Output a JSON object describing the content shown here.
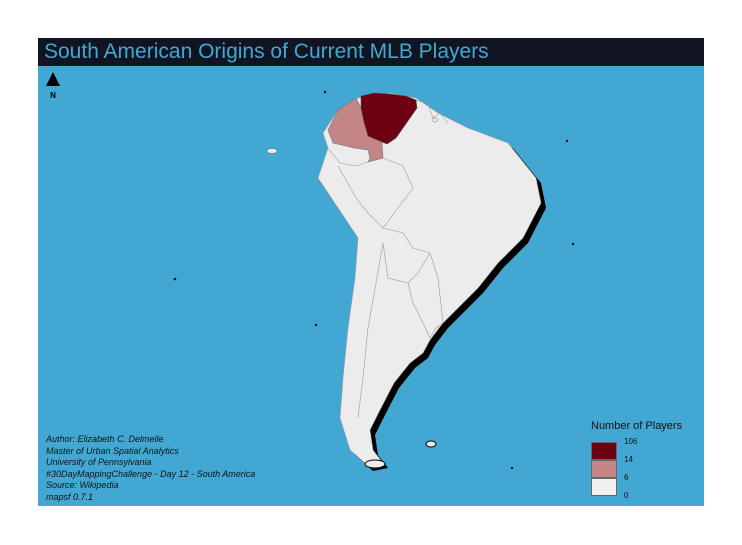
{
  "title": "South American Origins of Current MLB Players",
  "north_arrow": {
    "label": "N"
  },
  "credits": [
    "Author: Elizabeth C. Delmelle",
    "Master of Urban Spatial Analytics",
    "University of Pennsylvania",
    "#30DayMappingChallenge - Day 12 - South America",
    "Source: Wikipedia",
    "mapsf 0.7.1"
  ],
  "legend": {
    "title": "Number of Players",
    "breaks": [
      "106",
      "14",
      "6",
      "0"
    ],
    "colors": [
      "#6e0014",
      "#c38585",
      "#f0f0f0"
    ]
  },
  "colors": {
    "ocean": "#42a8d3",
    "title_bar": "#111521",
    "land_default": "#ececec",
    "shadow": "#000000"
  },
  "countries": [
    {
      "name": "Venezuela",
      "players": 106
    },
    {
      "name": "Colombia",
      "players": 14
    }
  ]
}
